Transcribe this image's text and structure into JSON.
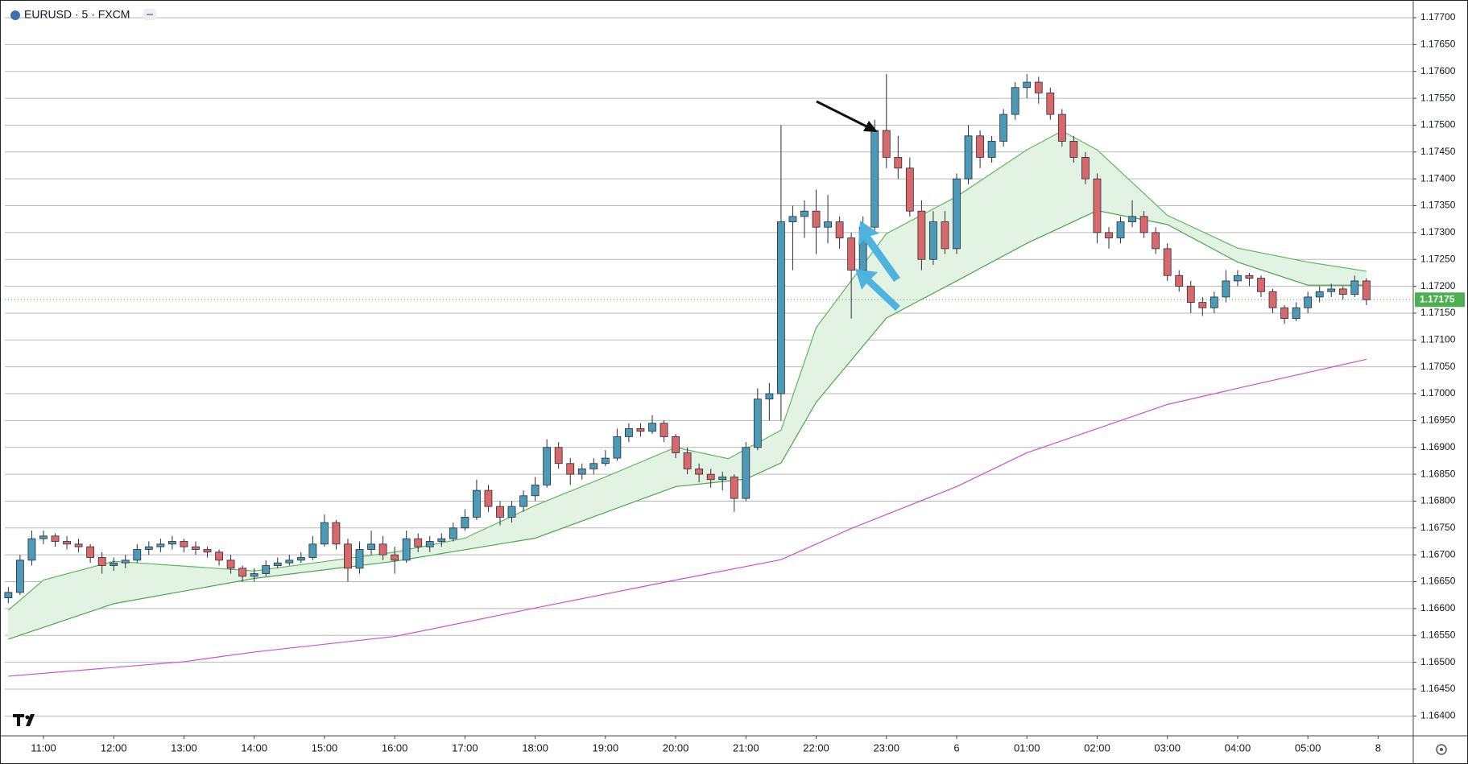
{
  "chart_data": {
    "type": "candlestick",
    "title": "EURUSD · 5 · FXCM",
    "up_color": "#4a9ab8",
    "down_color": "#d9686a",
    "border_color": "#2a2e39",
    "xlim": [
      627,
      1830
    ],
    "ylim": [
      1.16363,
      1.17724
    ],
    "xticks": [
      {
        "value": 660,
        "label": "11:00"
      },
      {
        "value": 720,
        "label": "12:00"
      },
      {
        "value": 780,
        "label": "13:00"
      },
      {
        "value": 840,
        "label": "14:00"
      },
      {
        "value": 900,
        "label": "15:00"
      },
      {
        "value": 960,
        "label": "16:00"
      },
      {
        "value": 1020,
        "label": "17:00"
      },
      {
        "value": 1080,
        "label": "18:00"
      },
      {
        "value": 1140,
        "label": "19:00"
      },
      {
        "value": 1200,
        "label": "20:00"
      },
      {
        "value": 1260,
        "label": "21:00"
      },
      {
        "value": 1320,
        "label": "22:00"
      },
      {
        "value": 1380,
        "label": "23:00"
      },
      {
        "value": 1440,
        "label": "6"
      },
      {
        "value": 1500,
        "label": "01:00"
      },
      {
        "value": 1560,
        "label": "02:00"
      },
      {
        "value": 1620,
        "label": "03:00"
      },
      {
        "value": 1680,
        "label": "04:00"
      },
      {
        "value": 1740,
        "label": "05:00"
      },
      {
        "value": 1800,
        "label": "8"
      }
    ],
    "yticks": [
      {
        "value": 1.164,
        "label": "1.16400"
      },
      {
        "value": 1.1645,
        "label": "1.16450"
      },
      {
        "value": 1.165,
        "label": "1.16500"
      },
      {
        "value": 1.1655,
        "label": "1.16550"
      },
      {
        "value": 1.166,
        "label": "1.16600"
      },
      {
        "value": 1.1665,
        "label": "1.16650"
      },
      {
        "value": 1.167,
        "label": "1.16700"
      },
      {
        "value": 1.1675,
        "label": "1.16750"
      },
      {
        "value": 1.168,
        "label": "1.16800"
      },
      {
        "value": 1.1685,
        "label": "1.16850"
      },
      {
        "value": 1.169,
        "label": "1.16900"
      },
      {
        "value": 1.1695,
        "label": "1.16950"
      },
      {
        "value": 1.17,
        "label": "1.17000"
      },
      {
        "value": 1.1705,
        "label": "1.17050"
      },
      {
        "value": 1.171,
        "label": "1.17100"
      },
      {
        "value": 1.1715,
        "label": "1.17150"
      },
      {
        "value": 1.172,
        "label": "1.17200"
      },
      {
        "value": 1.1725,
        "label": "1.17250"
      },
      {
        "value": 1.173,
        "label": "1.17300"
      },
      {
        "value": 1.1735,
        "label": "1.17350"
      },
      {
        "value": 1.174,
        "label": "1.17400"
      },
      {
        "value": 1.1745,
        "label": "1.17450"
      },
      {
        "value": 1.175,
        "label": "1.17500"
      },
      {
        "value": 1.1755,
        "label": "1.17550"
      },
      {
        "value": 1.176,
        "label": "1.17600"
      },
      {
        "value": 1.1765,
        "label": "1.17650"
      },
      {
        "value": 1.177,
        "label": "1.17700"
      }
    ],
    "last_price": {
      "value": 1.17175,
      "label": "1.17175",
      "color": "#4caf50"
    },
    "band_colors": [
      "#e3f3e3",
      "#fbe1e8"
    ],
    "overlays": [
      {
        "color": "#5cb85c",
        "x": [
          630,
          660,
          720,
          840,
          960,
          1020,
          1080,
          1140,
          1200,
          1245,
          1290,
          1320,
          1380,
          1440,
          1500,
          1530,
          1560,
          1620,
          1680,
          1740,
          1790
        ],
        "values": [
          1.16597,
          1.16653,
          1.16688,
          1.1667,
          1.16705,
          1.16731,
          1.16792,
          1.16845,
          1.169,
          1.16879,
          1.16932,
          1.17123,
          1.17298,
          1.17367,
          1.17454,
          1.17489,
          1.17454,
          1.17332,
          1.17271,
          1.17245,
          1.17228
        ]
      },
      {
        "color": "#4aa84a",
        "x": [
          630,
          720,
          840,
          960,
          1080,
          1200,
          1260,
          1290,
          1320,
          1380,
          1440,
          1500,
          1560,
          1620,
          1680,
          1740,
          1790
        ],
        "values": [
          1.16543,
          1.16609,
          1.16656,
          1.16688,
          1.16731,
          1.16827,
          1.16841,
          1.16871,
          1.16984,
          1.17141,
          1.1721,
          1.1728,
          1.17341,
          1.17315,
          1.17245,
          1.17202,
          1.17202
        ]
      },
      {
        "color": "#d04fd0",
        "x": [
          630,
          780,
          840,
          960,
          1080,
          1200,
          1290,
          1350,
          1440,
          1500,
          1560,
          1620,
          1680,
          1790
        ],
        "values": [
          1.16474,
          1.16501,
          1.16519,
          1.16548,
          1.16601,
          1.16653,
          1.16691,
          1.16749,
          1.16827,
          1.1689,
          1.16935,
          1.1698,
          1.1701,
          1.17064
        ]
      }
    ],
    "x": [
      630,
      640,
      650,
      660,
      670,
      680,
      690,
      700,
      710,
      720,
      730,
      740,
      750,
      760,
      770,
      780,
      790,
      800,
      810,
      820,
      830,
      840,
      850,
      860,
      870,
      880,
      890,
      900,
      910,
      920,
      930,
      940,
      950,
      960,
      970,
      980,
      990,
      1000,
      1010,
      1020,
      1030,
      1040,
      1050,
      1060,
      1070,
      1080,
      1090,
      1100,
      1110,
      1120,
      1130,
      1140,
      1150,
      1160,
      1170,
      1180,
      1190,
      1200,
      1210,
      1220,
      1230,
      1240,
      1250,
      1260,
      1270,
      1280,
      1290,
      1300,
      1310,
      1320,
      1330,
      1340,
      1350,
      1360,
      1370,
      1380,
      1390,
      1400,
      1410,
      1420,
      1430,
      1440,
      1450,
      1460,
      1470,
      1480,
      1490,
      1500,
      1510,
      1520,
      1530,
      1540,
      1550,
      1560,
      1570,
      1580,
      1590,
      1600,
      1610,
      1620,
      1630,
      1640,
      1650,
      1660,
      1670,
      1680,
      1690,
      1700,
      1710,
      1720,
      1730,
      1740,
      1750,
      1760,
      1770,
      1780,
      1790
    ],
    "ohlc": [
      [
        1.1662,
        1.1664,
        1.1661,
        1.1663
      ],
      [
        1.1663,
        1.167,
        1.16625,
        1.1669
      ],
      [
        1.1669,
        1.16745,
        1.1668,
        1.1673
      ],
      [
        1.1673,
        1.16745,
        1.1672,
        1.16735
      ],
      [
        1.16735,
        1.1674,
        1.16715,
        1.16725
      ],
      [
        1.16725,
        1.16735,
        1.1671,
        1.1672
      ],
      [
        1.1672,
        1.1673,
        1.16705,
        1.16715
      ],
      [
        1.16715,
        1.1672,
        1.16685,
        1.16695
      ],
      [
        1.16695,
        1.16705,
        1.16665,
        1.1668
      ],
      [
        1.1668,
        1.16695,
        1.1667,
        1.16685
      ],
      [
        1.16685,
        1.167,
        1.16675,
        1.1669
      ],
      [
        1.1669,
        1.1672,
        1.16685,
        1.1671
      ],
      [
        1.1671,
        1.16725,
        1.167,
        1.16715
      ],
      [
        1.16715,
        1.1673,
        1.16705,
        1.1672
      ],
      [
        1.1672,
        1.16735,
        1.1671,
        1.16725
      ],
      [
        1.16725,
        1.1673,
        1.16705,
        1.16715
      ],
      [
        1.16715,
        1.16725,
        1.167,
        1.1671
      ],
      [
        1.1671,
        1.16715,
        1.16695,
        1.16705
      ],
      [
        1.16705,
        1.1671,
        1.1668,
        1.1669
      ],
      [
        1.1669,
        1.167,
        1.16665,
        1.16675
      ],
      [
        1.16675,
        1.1668,
        1.1665,
        1.1666
      ],
      [
        1.1666,
        1.16675,
        1.1665,
        1.16665
      ],
      [
        1.16665,
        1.1669,
        1.1666,
        1.1668
      ],
      [
        1.1668,
        1.16695,
        1.16675,
        1.16685
      ],
      [
        1.16685,
        1.167,
        1.1668,
        1.1669
      ],
      [
        1.1669,
        1.16705,
        1.16685,
        1.16695
      ],
      [
        1.16695,
        1.16735,
        1.1669,
        1.1672
      ],
      [
        1.1672,
        1.16775,
        1.16715,
        1.1676
      ],
      [
        1.1676,
        1.16765,
        1.1671,
        1.1672
      ],
      [
        1.1672,
        1.1673,
        1.1665,
        1.16675
      ],
      [
        1.16675,
        1.16725,
        1.16665,
        1.1671
      ],
      [
        1.1671,
        1.16745,
        1.167,
        1.1672
      ],
      [
        1.1672,
        1.16735,
        1.1669,
        1.167
      ],
      [
        1.167,
        1.16715,
        1.16665,
        1.1669
      ],
      [
        1.1669,
        1.16745,
        1.16685,
        1.1673
      ],
      [
        1.1673,
        1.1674,
        1.16705,
        1.16715
      ],
      [
        1.16715,
        1.16735,
        1.16705,
        1.16725
      ],
      [
        1.16725,
        1.1674,
        1.16715,
        1.1673
      ],
      [
        1.1673,
        1.1676,
        1.16725,
        1.1675
      ],
      [
        1.1675,
        1.16785,
        1.16745,
        1.1677
      ],
      [
        1.1677,
        1.1684,
        1.16765,
        1.1682
      ],
      [
        1.1682,
        1.1683,
        1.1678,
        1.1679
      ],
      [
        1.1679,
        1.168,
        1.16755,
        1.1677
      ],
      [
        1.1677,
        1.168,
        1.1676,
        1.1679
      ],
      [
        1.1679,
        1.1682,
        1.1678,
        1.1681
      ],
      [
        1.1681,
        1.16845,
        1.168,
        1.1683
      ],
      [
        1.1683,
        1.16915,
        1.16825,
        1.169
      ],
      [
        1.169,
        1.1691,
        1.1686,
        1.1687
      ],
      [
        1.1687,
        1.1688,
        1.1683,
        1.1685
      ],
      [
        1.1685,
        1.1687,
        1.1684,
        1.1686
      ],
      [
        1.1686,
        1.1688,
        1.1685,
        1.1687
      ],
      [
        1.1687,
        1.16895,
        1.16865,
        1.1688
      ],
      [
        1.1688,
        1.16935,
        1.16875,
        1.1692
      ],
      [
        1.1692,
        1.16945,
        1.1691,
        1.16935
      ],
      [
        1.16935,
        1.16945,
        1.1692,
        1.1693
      ],
      [
        1.1693,
        1.1696,
        1.16925,
        1.16945
      ],
      [
        1.16945,
        1.1695,
        1.1691,
        1.1692
      ],
      [
        1.1692,
        1.16925,
        1.1688,
        1.1689
      ],
      [
        1.1689,
        1.169,
        1.1685,
        1.1686
      ],
      [
        1.1686,
        1.1687,
        1.16835,
        1.1685
      ],
      [
        1.1685,
        1.1686,
        1.16825,
        1.1684
      ],
      [
        1.1684,
        1.16855,
        1.1682,
        1.16845
      ],
      [
        1.16845,
        1.1685,
        1.1678,
        1.16805
      ],
      [
        1.16805,
        1.1691,
        1.168,
        1.169
      ],
      [
        1.169,
        1.1701,
        1.16895,
        1.1699
      ],
      [
        1.1699,
        1.1702,
        1.1695,
        1.17
      ],
      [
        1.17,
        1.175,
        1.1695,
        1.1732
      ],
      [
        1.1732,
        1.1735,
        1.1723,
        1.1733
      ],
      [
        1.1733,
        1.1736,
        1.1729,
        1.1734
      ],
      [
        1.1734,
        1.1738,
        1.1726,
        1.1731
      ],
      [
        1.1731,
        1.1737,
        1.1728,
        1.1732
      ],
      [
        1.1732,
        1.1733,
        1.1727,
        1.1729
      ],
      [
        1.1729,
        1.173,
        1.1714,
        1.1723
      ],
      [
        1.1723,
        1.1733,
        1.172,
        1.1731
      ],
      [
        1.1731,
        1.1751,
        1.173,
        1.1749
      ],
      [
        1.1749,
        1.17595,
        1.1742,
        1.1744
      ],
      [
        1.1744,
        1.1748,
        1.174,
        1.1742
      ],
      [
        1.1742,
        1.1744,
        1.1733,
        1.1734
      ],
      [
        1.1734,
        1.1736,
        1.1723,
        1.1725
      ],
      [
        1.1725,
        1.1734,
        1.1724,
        1.1732
      ],
      [
        1.1732,
        1.1734,
        1.1726,
        1.1727
      ],
      [
        1.1727,
        1.1741,
        1.1726,
        1.174
      ],
      [
        1.174,
        1.175,
        1.1739,
        1.1748
      ],
      [
        1.1748,
        1.1749,
        1.1742,
        1.1744
      ],
      [
        1.1744,
        1.1748,
        1.1743,
        1.1747
      ],
      [
        1.1747,
        1.1753,
        1.1746,
        1.1752
      ],
      [
        1.1752,
        1.1758,
        1.1751,
        1.1757
      ],
      [
        1.1757,
        1.17595,
        1.1755,
        1.1758
      ],
      [
        1.1758,
        1.1759,
        1.1754,
        1.1756
      ],
      [
        1.1756,
        1.1757,
        1.1751,
        1.1752
      ],
      [
        1.1752,
        1.1753,
        1.1746,
        1.1747
      ],
      [
        1.1747,
        1.1748,
        1.1743,
        1.1744
      ],
      [
        1.1744,
        1.1745,
        1.1739,
        1.174
      ],
      [
        1.174,
        1.1741,
        1.1728,
        1.173
      ],
      [
        1.173,
        1.1731,
        1.1727,
        1.1729
      ],
      [
        1.1729,
        1.1733,
        1.1728,
        1.1732
      ],
      [
        1.1732,
        1.1736,
        1.1731,
        1.1733
      ],
      [
        1.1733,
        1.1734,
        1.1729,
        1.173
      ],
      [
        1.173,
        1.1731,
        1.1726,
        1.1727
      ],
      [
        1.1727,
        1.1728,
        1.1721,
        1.1722
      ],
      [
        1.1722,
        1.1723,
        1.1719,
        1.172
      ],
      [
        1.172,
        1.1721,
        1.1715,
        1.1717
      ],
      [
        1.1717,
        1.1718,
        1.17145,
        1.1716
      ],
      [
        1.1716,
        1.1719,
        1.1715,
        1.1718
      ],
      [
        1.1718,
        1.1723,
        1.1717,
        1.1721
      ],
      [
        1.1721,
        1.1723,
        1.172,
        1.1722
      ],
      [
        1.1722,
        1.17225,
        1.172,
        1.17215
      ],
      [
        1.17215,
        1.1722,
        1.1718,
        1.1719
      ],
      [
        1.1719,
        1.17195,
        1.1715,
        1.1716
      ],
      [
        1.1716,
        1.17165,
        1.1713,
        1.1714
      ],
      [
        1.1714,
        1.1717,
        1.17135,
        1.1716
      ],
      [
        1.1716,
        1.1719,
        1.1715,
        1.1718
      ],
      [
        1.1718,
        1.172,
        1.1717,
        1.1719
      ],
      [
        1.1719,
        1.17205,
        1.1718,
        1.17195
      ],
      [
        1.17195,
        1.172,
        1.17175,
        1.17185
      ],
      [
        1.17185,
        1.1722,
        1.1718,
        1.1721
      ],
      [
        1.1721,
        1.17215,
        1.17165,
        1.17175
      ]
    ]
  }
}
